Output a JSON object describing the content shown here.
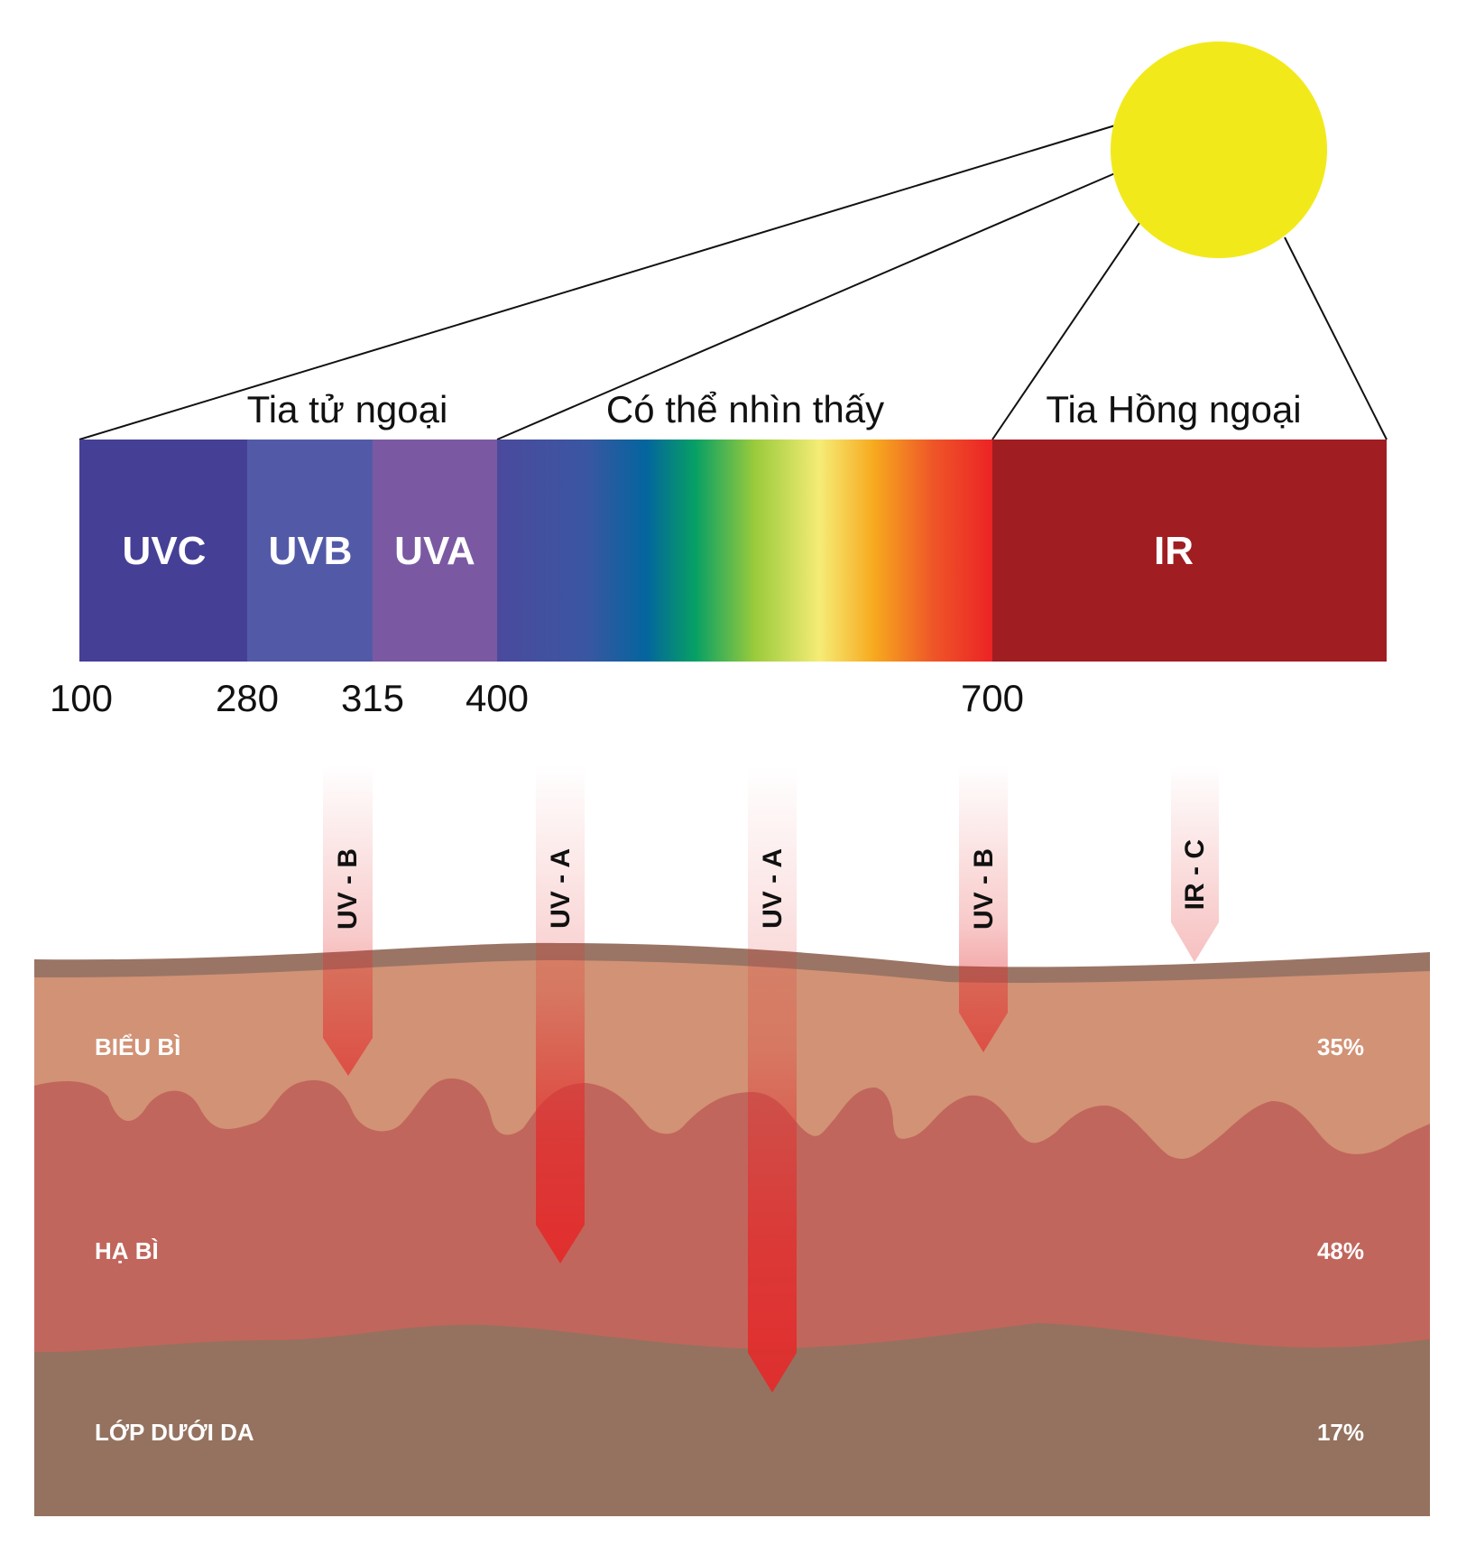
{
  "spectrum": {
    "groups": [
      {
        "key": "uv",
        "label": "Tia tử ngoại"
      },
      {
        "key": "visible",
        "label": "Có thể nhìn thấy"
      },
      {
        "key": "ir",
        "label": "Tia Hồng ngoại"
      }
    ],
    "bands": [
      {
        "key": "uvc",
        "label": "UVC",
        "color": "#463f96"
      },
      {
        "key": "uvb",
        "label": "UVB",
        "color": "#525aa8"
      },
      {
        "key": "uva",
        "label": "UVA",
        "color": "#7a59a2"
      },
      {
        "key": "visible",
        "label": "",
        "color": "gradient"
      },
      {
        "key": "ir",
        "label": "IR",
        "color": "#a01d22"
      }
    ],
    "ticks": [
      "100",
      "280",
      "315",
      "400",
      "700"
    ]
  },
  "sun": {
    "color": "#f2e91b"
  },
  "rays": [
    {
      "key": "uvb-1",
      "label": "UV - B",
      "reaches": "epidermis"
    },
    {
      "key": "uva-1",
      "label": "UV - A",
      "reaches": "dermis"
    },
    {
      "key": "uva-2",
      "label": "UV - A",
      "reaches": "subcutis"
    },
    {
      "key": "uvb-2",
      "label": "UV - B",
      "reaches": "epidermis"
    },
    {
      "key": "irc",
      "label": "IR - C",
      "reaches": "surface"
    }
  ],
  "skin_layers": [
    {
      "key": "epidermis",
      "label": "BIỂU BÌ",
      "percent": "35%",
      "color": "#d29275"
    },
    {
      "key": "dermis",
      "label": "HẠ BÌ",
      "percent": "48%",
      "color": "#c1665c"
    },
    {
      "key": "subcutis",
      "label": "LỚP DƯỚI DA",
      "percent": "17%",
      "color": "#94725f"
    }
  ],
  "colors": {
    "surface": "#9a7565",
    "ray": "#e32b2b"
  }
}
